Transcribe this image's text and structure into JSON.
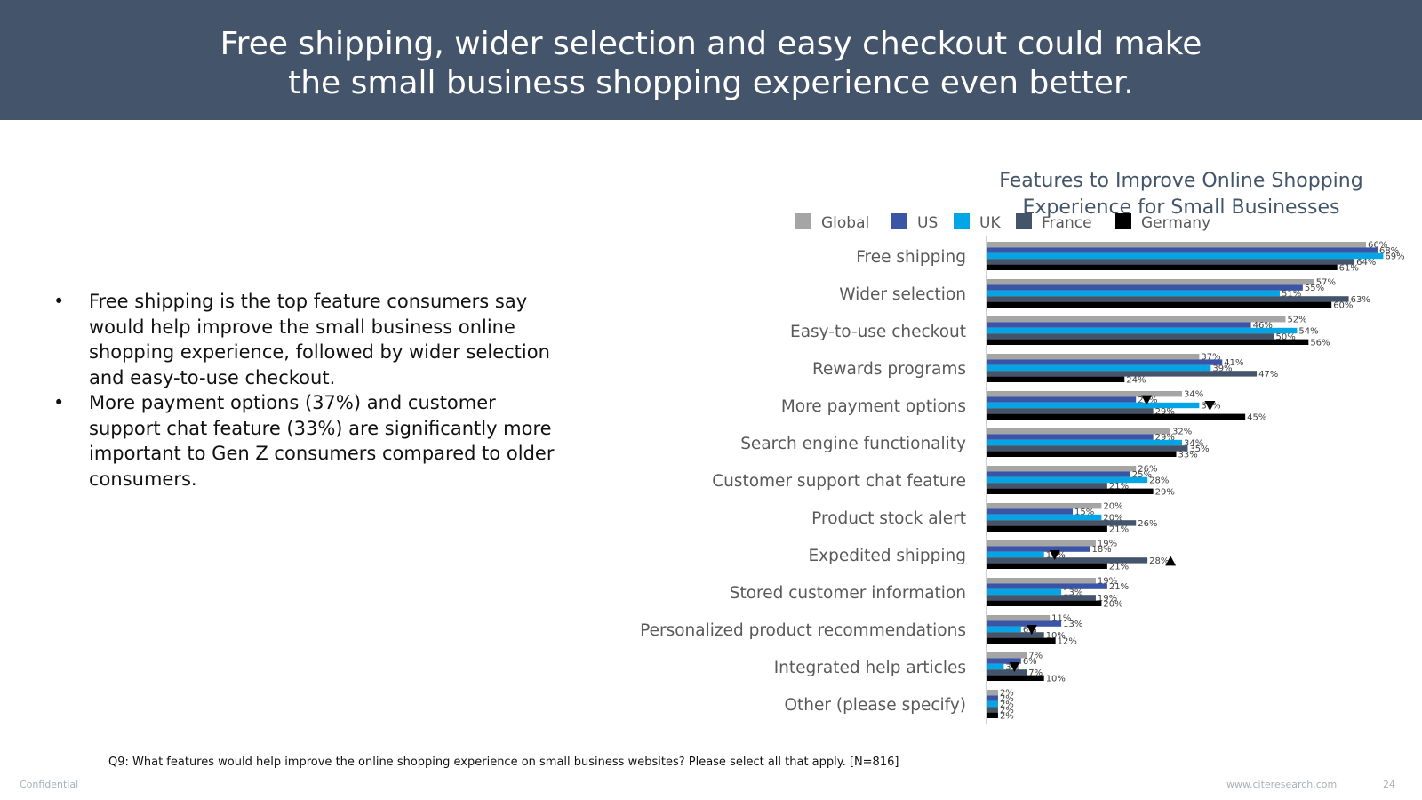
{
  "slide": {
    "title_line1": "Free shipping, wider selection and easy checkout could make",
    "title_line2": "the small business shopping experience even better.",
    "bullets": [
      "Free shipping is the top feature consumers say would help improve the small business online shopping experience, followed by wider selection and easy-to-use checkout.",
      "More payment options (37%) and customer support chat feature (33%) are significantly more important to Gen Z consumers compared to older consumers."
    ],
    "footnote": "Q9: What features would help improve the online shopping experience on small business websites? Please select all that apply. [N=816]",
    "confidential": "Confidential",
    "website": "www.citeresearch.com",
    "page_number": "24"
  },
  "chart_data": {
    "type": "bar",
    "orientation": "horizontal",
    "title_line1": "Features to Improve Online Shopping",
    "title_line2": "Experience for Small Businesses",
    "legend_position": "top",
    "grid": false,
    "xlim": [
      0,
      70
    ],
    "value_suffix": "%",
    "categories": [
      "Free shipping",
      "Wider selection",
      "Easy-to-use checkout",
      "Rewards programs",
      "More payment options",
      "Search engine functionality",
      "Customer support chat feature",
      "Product stock alert",
      "Expedited shipping",
      "Stored customer information",
      "Personalized product recommendations",
      "Integrated help articles",
      "Other (please specify)"
    ],
    "series": [
      {
        "name": "Global",
        "color": "#a5a5a5",
        "values": [
          66,
          57,
          52,
          37,
          34,
          32,
          26,
          20,
          19,
          19,
          11,
          7,
          2
        ]
      },
      {
        "name": "US",
        "color": "#3a55a5",
        "values": [
          68,
          55,
          46,
          41,
          26,
          29,
          25,
          15,
          18,
          21,
          13,
          6,
          2
        ]
      },
      {
        "name": "UK",
        "color": "#00a6e6",
        "values": [
          69,
          51,
          54,
          39,
          37,
          34,
          28,
          20,
          10,
          13,
          6,
          3,
          2
        ]
      },
      {
        "name": "France",
        "color": "#44546a",
        "values": [
          64,
          63,
          50,
          47,
          29,
          35,
          21,
          26,
          28,
          19,
          10,
          7,
          2
        ]
      },
      {
        "name": "Germany",
        "color": "#000000",
        "values": [
          61,
          60,
          56,
          24,
          45,
          33,
          29,
          21,
          21,
          20,
          12,
          10,
          2
        ]
      }
    ],
    "significance_markers": [
      {
        "category": "More payment options",
        "series": "US",
        "direction": "down"
      },
      {
        "category": "More payment options",
        "series": "UK",
        "direction": "down"
      },
      {
        "category": "Expedited shipping",
        "series": "UK",
        "direction": "down"
      },
      {
        "category": "Expedited shipping",
        "series": "France",
        "direction": "up"
      },
      {
        "category": "Personalized product recommendations",
        "series": "UK",
        "direction": "down"
      },
      {
        "category": "Integrated help articles",
        "series": "UK",
        "direction": "down"
      }
    ]
  }
}
